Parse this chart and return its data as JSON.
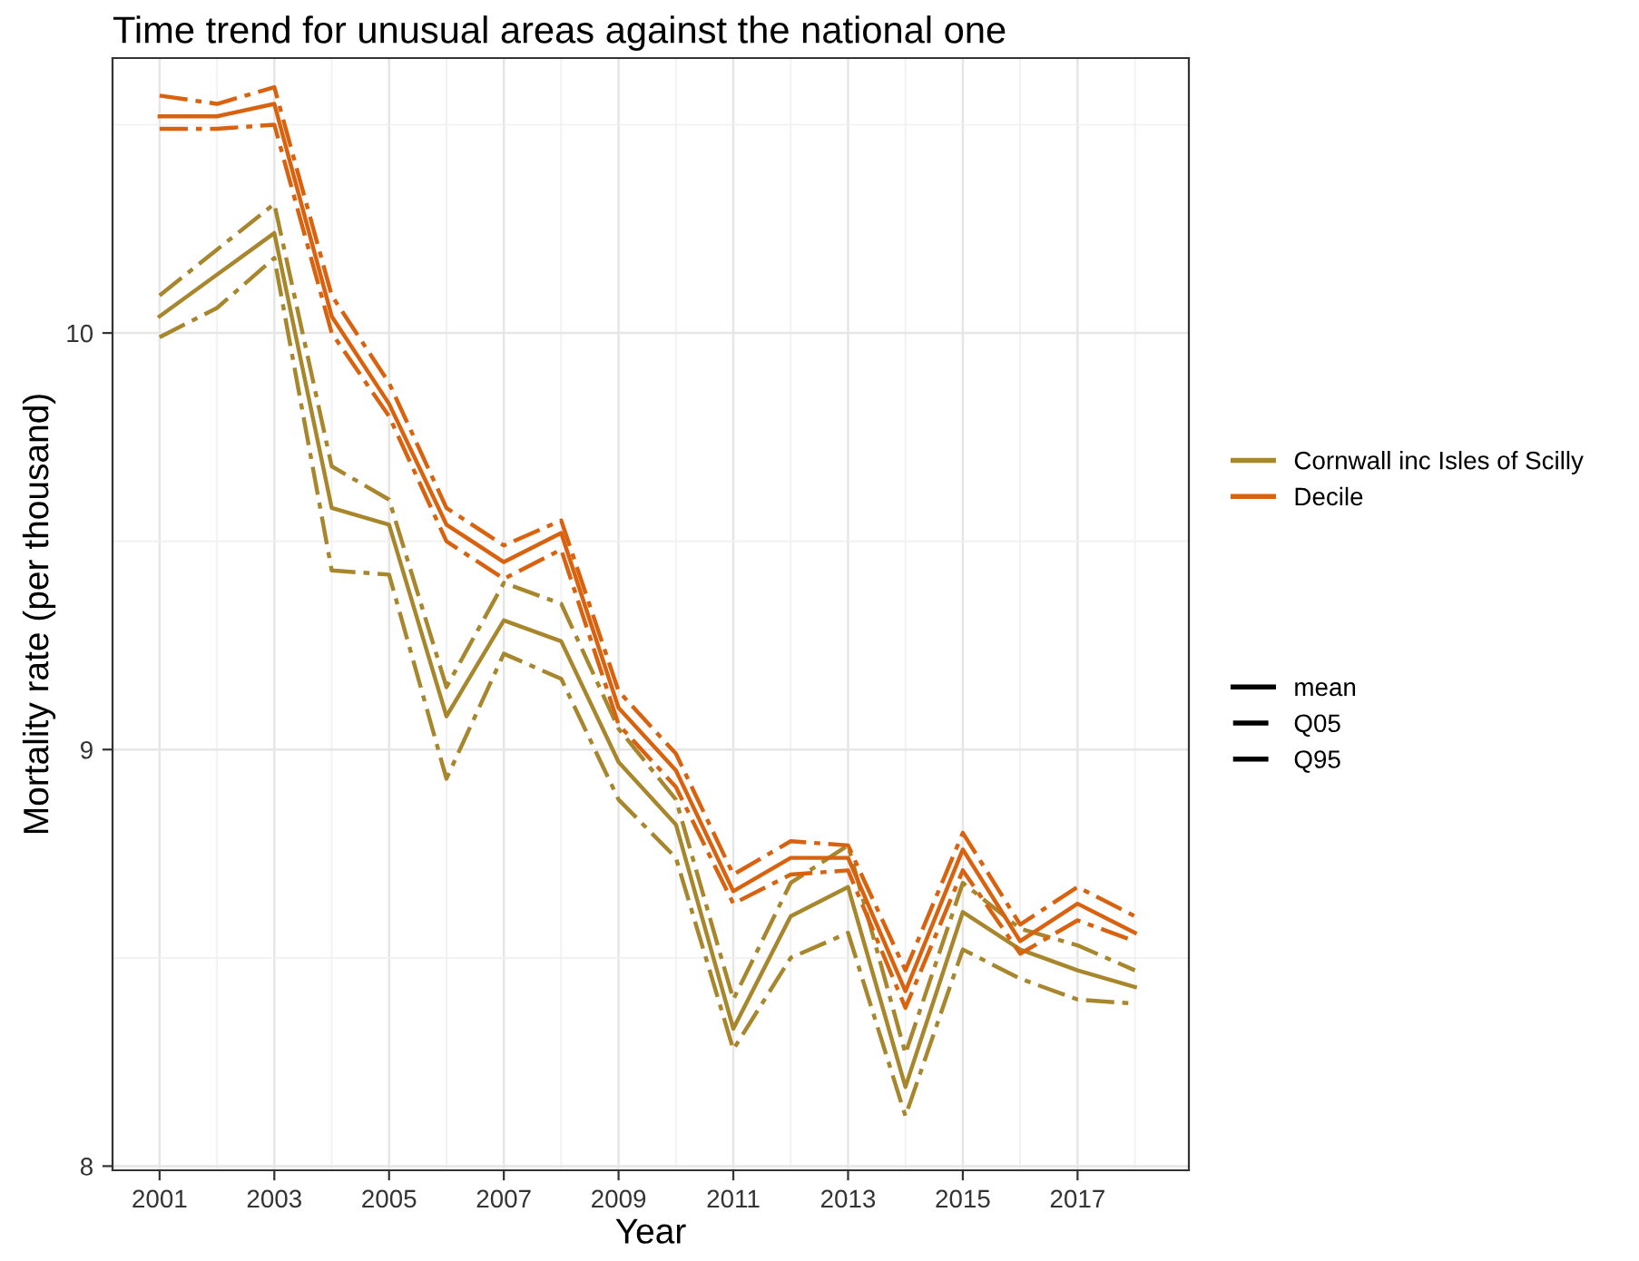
{
  "chart_data": {
    "type": "line",
    "title": "Time trend for unusual areas against the national one",
    "xlabel": "Year",
    "ylabel": "Mortality rate (per thousand)",
    "x": [
      2001,
      2002,
      2003,
      2004,
      2005,
      2006,
      2007,
      2008,
      2009,
      2010,
      2011,
      2012,
      2013,
      2014,
      2015,
      2016,
      2017,
      2018
    ],
    "series": [
      {
        "name": "Cornwall inc Isles of Scilly",
        "color": "#a8862c",
        "line_style": "solid",
        "values": [
          10.04,
          10.14,
          10.24,
          9.58,
          9.54,
          9.08,
          9.31,
          9.26,
          8.97,
          8.82,
          8.33,
          8.6,
          8.67,
          8.19,
          8.61,
          8.52,
          8.47,
          8.43
        ]
      },
      {
        "color": "#a8862c",
        "line_style": "dashdot",
        "values": [
          9.99,
          10.06,
          10.18,
          9.43,
          9.42,
          8.93,
          9.23,
          9.17,
          8.88,
          8.74,
          8.28,
          8.5,
          8.56,
          8.12,
          8.52,
          8.45,
          8.4,
          8.39
        ]
      },
      {
        "color": "#a8862c",
        "line_style": "dashdot",
        "values": [
          10.09,
          10.2,
          10.31,
          9.68,
          9.6,
          9.15,
          9.4,
          9.35,
          9.05,
          8.88,
          8.4,
          8.68,
          8.77,
          8.27,
          8.68,
          8.57,
          8.53,
          8.47
        ]
      },
      {
        "name": "Decile",
        "color": "#d9620f",
        "line_style": "solid",
        "values": [
          10.52,
          10.52,
          10.55,
          10.04,
          9.83,
          9.54,
          9.45,
          9.52,
          9.1,
          8.95,
          8.66,
          8.74,
          8.74,
          8.42,
          8.76,
          8.54,
          8.63,
          8.56
        ]
      },
      {
        "color": "#d9620f",
        "line_style": "dashdot",
        "values": [
          10.49,
          10.49,
          10.5,
          10.0,
          9.8,
          9.5,
          9.41,
          9.48,
          9.06,
          8.91,
          8.63,
          8.7,
          8.71,
          8.38,
          8.71,
          8.51,
          8.59,
          8.54
        ]
      },
      {
        "color": "#d9620f",
        "line_style": "dashdot",
        "values": [
          10.57,
          10.55,
          10.59,
          10.09,
          9.88,
          9.58,
          9.49,
          9.55,
          9.14,
          8.99,
          8.7,
          8.78,
          8.77,
          8.47,
          8.8,
          8.58,
          8.67,
          8.6
        ]
      }
    ],
    "annotations": [
      "mean",
      "Q05",
      "Q95"
    ],
    "xlim": [
      2000.18,
      2018.94
    ],
    "ylim": [
      7.99,
      10.66
    ],
    "xticks": [
      2001,
      {
        "value": 2002,
        "label": null
      },
      2003,
      {
        "value": 2004,
        "label": null
      },
      2005,
      {
        "value": 2006,
        "label": null
      },
      2007,
      {
        "value": 2008,
        "label": null
      },
      2009,
      {
        "value": 2010,
        "label": null
      },
      2011,
      {
        "value": 2012,
        "label": null
      },
      2013,
      {
        "value": 2014,
        "label": null
      },
      2015,
      {
        "value": 2016,
        "label": null
      },
      2017,
      {
        "value": 2018,
        "label": null
      }
    ],
    "yticks": [
      8,
      {
        "value": 8.5,
        "label": null
      },
      9,
      {
        "value": 9.5,
        "label": null
      },
      10,
      {
        "value": 10.5,
        "label": null
      }
    ],
    "grid": true,
    "legend": "right",
    "marker": "none"
  }
}
